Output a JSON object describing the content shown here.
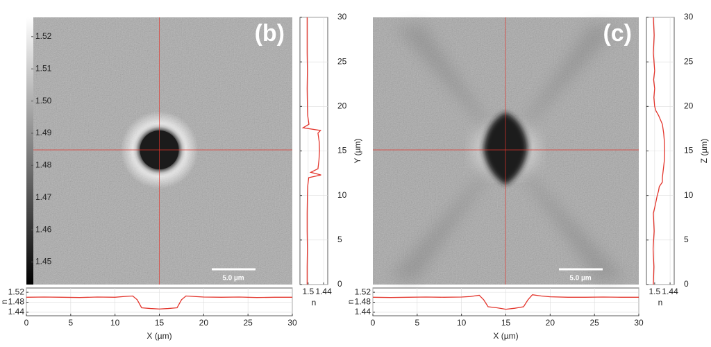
{
  "chart_data": [
    {
      "type": "colorbar",
      "ylim": [
        1.443,
        1.526
      ],
      "yticks": [
        1.45,
        1.46,
        1.47,
        1.48,
        1.49,
        {
          "value": 1.5,
          "label": "1.50"
        },
        1.51,
        1.52
      ]
    },
    {
      "type": "image",
      "label": "(b)",
      "scale_bar": "5.0 µm"
    },
    {
      "type": "line",
      "xlabel": "X (µm)",
      "ylabel": "n",
      "color": "#e3342b",
      "grid": true,
      "x": [
        0,
        2,
        4,
        6,
        8,
        10,
        11,
        12,
        12.5,
        13,
        14,
        15,
        16,
        17,
        17.5,
        18,
        19,
        20,
        22,
        24,
        26,
        28,
        30
      ],
      "values": [
        1.5,
        1.501,
        1.5,
        1.499,
        1.501,
        1.5,
        1.503,
        1.505,
        1.49,
        1.458,
        1.455,
        1.453,
        1.455,
        1.458,
        1.49,
        1.505,
        1.503,
        1.501,
        1.5,
        1.501,
        1.499,
        1.5,
        1.5
      ],
      "xlim": [
        0,
        30
      ],
      "xticks": [
        0,
        5,
        10,
        15,
        20,
        25,
        30
      ],
      "ylim": [
        1.426,
        1.537
      ],
      "yticks": [
        1.44,
        1.48,
        1.52
      ]
    },
    {
      "type": "line",
      "xlabel": "n",
      "ylabel": "Y (µm)",
      "color": "#e3342b",
      "grid": true,
      "y": [
        0,
        2,
        4,
        6,
        8,
        10,
        11,
        12,
        12.3,
        12.6,
        13,
        14,
        15,
        16,
        17,
        17.3,
        17.6,
        18,
        19,
        20,
        22,
        24,
        26,
        28,
        30
      ],
      "values": [
        1.504,
        1.504,
        1.503,
        1.504,
        1.504,
        1.503,
        1.502,
        1.498,
        1.45,
        1.49,
        1.462,
        1.458,
        1.456,
        1.457,
        1.462,
        1.452,
        1.52,
        1.497,
        1.502,
        1.503,
        1.504,
        1.503,
        1.504,
        1.504,
        1.504
      ],
      "xlim": [
        1.532,
        1.424
      ],
      "xticks": [
        1.5,
        1.44
      ],
      "ylim": [
        0,
        30
      ],
      "yticks": [
        0,
        5,
        10,
        15,
        20,
        25,
        30
      ]
    },
    {
      "type": "image",
      "label": "(c)",
      "scale_bar": "5.0 µm"
    },
    {
      "type": "line",
      "xlabel": "X (µm)",
      "ylabel": "n",
      "color": "#e3342b",
      "grid": true,
      "x": [
        0,
        2,
        4,
        6,
        8,
        10,
        11,
        12,
        12.5,
        13,
        14,
        15,
        16,
        17,
        17.5,
        18,
        19,
        20,
        22,
        24,
        26,
        28,
        30
      ],
      "values": [
        1.5,
        1.499,
        1.5,
        1.501,
        1.5,
        1.501,
        1.503,
        1.508,
        1.49,
        1.462,
        1.458,
        1.452,
        1.456,
        1.462,
        1.49,
        1.51,
        1.505,
        1.502,
        1.5,
        1.5,
        1.501,
        1.5,
        1.5
      ],
      "xlim": [
        0,
        30
      ],
      "xticks": [
        0,
        5,
        10,
        15,
        20,
        25,
        30
      ],
      "ylim": [
        1.426,
        1.537
      ],
      "yticks": [
        1.44,
        1.48,
        1.52
      ]
    },
    {
      "type": "line",
      "xlabel": "n",
      "ylabel": "Z (µm)",
      "color": "#e3342b",
      "grid": true,
      "y": [
        0,
        2,
        4,
        6,
        8,
        9,
        10,
        10.5,
        11,
        11.5,
        12,
        13,
        14,
        15,
        16,
        17,
        18,
        19,
        19.5,
        20,
        21,
        22,
        23,
        24,
        26,
        28,
        30
      ],
      "values": [
        1.505,
        1.503,
        1.506,
        1.502,
        1.505,
        1.497,
        1.49,
        1.485,
        1.482,
        1.47,
        1.47,
        1.466,
        1.462,
        1.461,
        1.462,
        1.465,
        1.47,
        1.485,
        1.495,
        1.5,
        1.503,
        1.5,
        1.504,
        1.5,
        1.505,
        1.502,
        1.505
      ],
      "xlim": [
        1.532,
        1.424
      ],
      "xticks": [
        1.5,
        1.44
      ],
      "ylim": [
        0,
        30
      ],
      "yticks": [
        0,
        5,
        10,
        15,
        20,
        25,
        30
      ]
    }
  ]
}
